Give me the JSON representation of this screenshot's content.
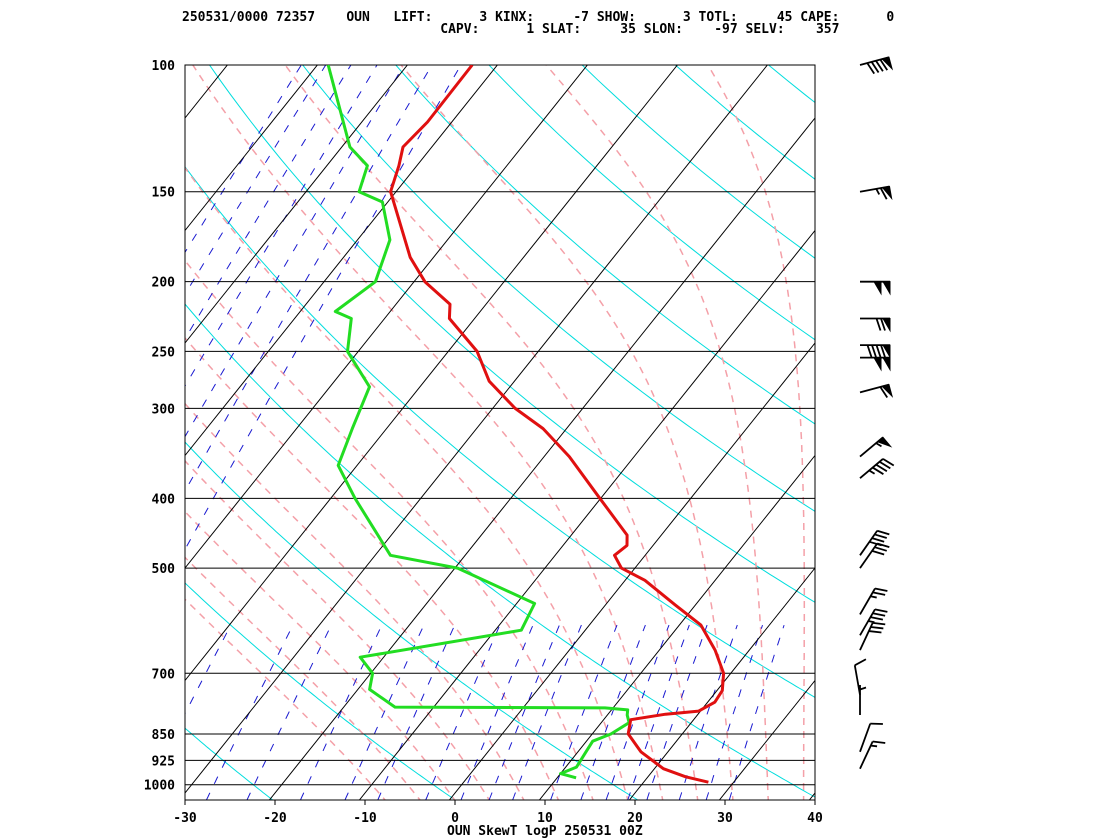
{
  "header": {
    "line1": "250531/0000 72357    OUN   LIFT:      3 KINX:     -7 SHOW:      3 TOTL:     45 CAPE:      0",
    "line2": "                                 CAPV:      1 SLAT:     35 SLON:    -97 SELV:    357"
  },
  "footer": "OUN SkewT logP 250531 00Z",
  "colors": {
    "temperature": "#e01010",
    "dewpoint": "#22dd22",
    "isotherm": "#000000",
    "dry_adiabat": "#00dddd",
    "moist_adiabat": "#f4a0a8",
    "mixing_ratio": "#1a1ad0",
    "barb": "#000000"
  },
  "chart_data": {
    "type": "skew-t log-p",
    "xlabel": "",
    "ylabel": "",
    "xlim": [
      -30,
      40
    ],
    "ylim": [
      1000,
      100
    ],
    "x_ticks": [
      -30,
      -20,
      -10,
      0,
      10,
      20,
      30,
      40
    ],
    "pressure_levels": [
      100,
      150,
      200,
      250,
      300,
      400,
      500,
      700,
      850,
      925,
      1000
    ],
    "temperature_profile": [
      {
        "p": 992,
        "t": 27.2
      },
      {
        "p": 975,
        "t": 24.2
      },
      {
        "p": 950,
        "t": 21.0
      },
      {
        "p": 900,
        "t": 17.0
      },
      {
        "p": 850,
        "t": 14.0
      },
      {
        "p": 812,
        "t": 13.0
      },
      {
        "p": 798,
        "t": 16.4
      },
      {
        "p": 790,
        "t": 19.8
      },
      {
        "p": 768,
        "t": 20.8
      },
      {
        "p": 740,
        "t": 20.6
      },
      {
        "p": 700,
        "t": 19.2
      },
      {
        "p": 650,
        "t": 16.2
      },
      {
        "p": 600,
        "t": 12.4
      },
      {
        "p": 563,
        "t": 7.8
      },
      {
        "p": 520,
        "t": 2.2
      },
      {
        "p": 500,
        "t": -1.5
      },
      {
        "p": 480,
        "t": -3.4
      },
      {
        "p": 465,
        "t": -2.9
      },
      {
        "p": 450,
        "t": -3.8
      },
      {
        "p": 400,
        "t": -10.1
      },
      {
        "p": 350,
        "t": -17.2
      },
      {
        "p": 320,
        "t": -22.6
      },
      {
        "p": 300,
        "t": -27.5
      },
      {
        "p": 275,
        "t": -32.8
      },
      {
        "p": 250,
        "t": -36.8
      },
      {
        "p": 225,
        "t": -42.8
      },
      {
        "p": 215,
        "t": -44.0
      },
      {
        "p": 200,
        "t": -48.8
      },
      {
        "p": 185,
        "t": -52.6
      },
      {
        "p": 150,
        "t": -60.6
      },
      {
        "p": 138,
        "t": -62.0
      },
      {
        "p": 130,
        "t": -63.2
      },
      {
        "p": 120,
        "t": -62.7
      },
      {
        "p": 100,
        "t": -62.8
      }
    ],
    "dewpoint_profile": [
      {
        "p": 978,
        "t": 12.1
      },
      {
        "p": 965,
        "t": 10.0
      },
      {
        "p": 945,
        "t": 11.2
      },
      {
        "p": 900,
        "t": 10.9
      },
      {
        "p": 870,
        "t": 10.7
      },
      {
        "p": 850,
        "t": 12.1
      },
      {
        "p": 820,
        "t": 13.1
      },
      {
        "p": 800,
        "t": 12.2
      },
      {
        "p": 787,
        "t": 11.8
      },
      {
        "p": 782,
        "t": 9.1
      },
      {
        "p": 780,
        "t": -14.3
      },
      {
        "p": 737,
        "t": -18.7
      },
      {
        "p": 700,
        "t": -19.8
      },
      {
        "p": 665,
        "t": -22.6
      },
      {
        "p": 610,
        "t": -7.1
      },
      {
        "p": 560,
        "t": -8.0
      },
      {
        "p": 500,
        "t": -19.7
      },
      {
        "p": 480,
        "t": -28.3
      },
      {
        "p": 400,
        "t": -37.3
      },
      {
        "p": 360,
        "t": -42.1
      },
      {
        "p": 320,
        "t": -43.8
      },
      {
        "p": 280,
        "t": -45.6
      },
      {
        "p": 250,
        "t": -51.2
      },
      {
        "p": 225,
        "t": -53.7
      },
      {
        "p": 220,
        "t": -56.1
      },
      {
        "p": 200,
        "t": -54.3
      },
      {
        "p": 175,
        "t": -56.4
      },
      {
        "p": 155,
        "t": -60.6
      },
      {
        "p": 150,
        "t": -64.1
      },
      {
        "p": 138,
        "t": -65.5
      },
      {
        "p": 130,
        "t": -69.1
      },
      {
        "p": 100,
        "t": -78.8
      }
    ],
    "wind_barbs": [
      {
        "p": 100,
        "dir": 255,
        "spd": 90
      },
      {
        "p": 150,
        "dir": 260,
        "spd": 65
      },
      {
        "p": 200,
        "dir": 270,
        "spd": 100
      },
      {
        "p": 225,
        "dir": 270,
        "spd": 70
      },
      {
        "p": 245,
        "dir": 270,
        "spd": 90
      },
      {
        "p": 255,
        "dir": 270,
        "spd": 100
      },
      {
        "p": 285,
        "dir": 255,
        "spd": 60
      },
      {
        "p": 350,
        "dir": 230,
        "spd": 55
      },
      {
        "p": 375,
        "dir": 230,
        "spd": 45
      },
      {
        "p": 480,
        "dir": 215,
        "spd": 40
      },
      {
        "p": 500,
        "dir": 215,
        "spd": 30
      },
      {
        "p": 580,
        "dir": 210,
        "spd": 25
      },
      {
        "p": 620,
        "dir": 210,
        "spd": 35
      },
      {
        "p": 650,
        "dir": 205,
        "spd": 30
      },
      {
        "p": 750,
        "dir": 170,
        "spd": 10
      },
      {
        "p": 800,
        "dir": 180,
        "spd": 5
      },
      {
        "p": 900,
        "dir": 200,
        "spd": 10
      },
      {
        "p": 950,
        "dir": 205,
        "spd": 15
      }
    ]
  }
}
